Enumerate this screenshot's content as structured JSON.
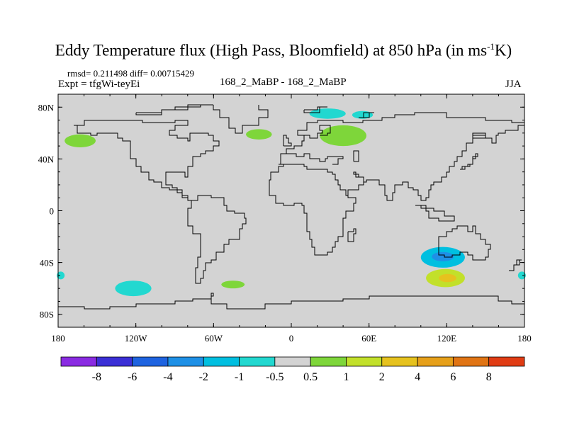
{
  "title": {
    "main": "Eddy Temperature flux (High Pass, Bloomfield) at 850 hPa (in ms",
    "sup": "-1",
    "tail": "K)"
  },
  "stats": "rmsd= 0.211498 diff= 0.00715429",
  "expt": "Expt = tfgWi-teyEi",
  "center_label": "168_2_MaBP - 168_2_MaBP",
  "season": "JJA",
  "colors": {
    "land_outline": "#000000",
    "background_fill": "#d3d3d3",
    "page": "#ffffff"
  },
  "map": {
    "projection": "cylindrical equidistant",
    "lon_range": [
      -180,
      180
    ],
    "lat_range": [
      -90,
      90
    ],
    "x_tick_labels": [
      "180",
      "120W",
      "60W",
      "0",
      "60E",
      "120E",
      "180"
    ],
    "y_tick_labels": [
      "80N",
      "40N",
      "0",
      "40S",
      "80S"
    ],
    "x_tick_values": [
      -180,
      -120,
      -60,
      0,
      60,
      120,
      180
    ],
    "y_tick_values": [
      80,
      40,
      0,
      -40,
      -80
    ]
  },
  "colorbar": {
    "levels": [
      "-8",
      "-6",
      "-4",
      "-2",
      "-1",
      "-0.5",
      "0.5",
      "1",
      "2",
      "4",
      "6",
      "8"
    ],
    "colors": [
      "#8a2be2",
      "#3b2fd6",
      "#1e63e0",
      "#1e90e6",
      "#00bfe0",
      "#22d8d0",
      "#d3d3d3",
      "#7ed63a",
      "#c2e02a",
      "#e6c21e",
      "#e6a01a",
      "#e07414",
      "#e03c14"
    ]
  },
  "features": [
    {
      "name": "positive-anomaly-north-pacific",
      "lon": -163,
      "lat": 54,
      "rx": 12,
      "ry": 5,
      "level": "0.5-1"
    },
    {
      "name": "positive-anomaly-north-atlantic",
      "lon": -25,
      "lat": 59,
      "rx": 10,
      "ry": 4,
      "level": "0.5-1"
    },
    {
      "name": "positive-anomaly-siberia",
      "lon": 40,
      "lat": 58,
      "rx": 18,
      "ry": 8,
      "level": "0.5-1"
    },
    {
      "name": "negative-anomaly-arctic-barents",
      "lon": 28,
      "lat": 75,
      "rx": 14,
      "ry": 4,
      "level": "-1--0.5"
    },
    {
      "name": "negative-anomaly-arctic-kara",
      "lon": 55,
      "lat": 74,
      "rx": 8,
      "ry": 3,
      "level": "-1--0.5"
    },
    {
      "name": "negative-anomaly-south-indian-ocean",
      "lon": 117,
      "lat": -36,
      "rx": 17,
      "ry": 8,
      "level": "-2--1"
    },
    {
      "name": "positive-anomaly-south-indian-ocean",
      "lon": 119,
      "lat": -52,
      "rx": 15,
      "ry": 7,
      "level": "1-2"
    },
    {
      "name": "negative-anomaly-south-pacific",
      "lon": -122,
      "lat": -60,
      "rx": 14,
      "ry": 6,
      "level": "-1--0.5"
    },
    {
      "name": "positive-anomaly-south-atlantic",
      "lon": -45,
      "lat": -57,
      "rx": 9,
      "ry": 3,
      "level": "0.5-1"
    },
    {
      "name": "negative-anomaly-east-pacific-edge",
      "lon": -178,
      "lat": -50,
      "rx": 3,
      "ry": 3,
      "level": "-1--0.5"
    },
    {
      "name": "negative-anomaly-east-pacific-edge-right",
      "lon": 178,
      "lat": -50,
      "rx": 3,
      "ry": 3,
      "level": "-1--0.5"
    }
  ]
}
